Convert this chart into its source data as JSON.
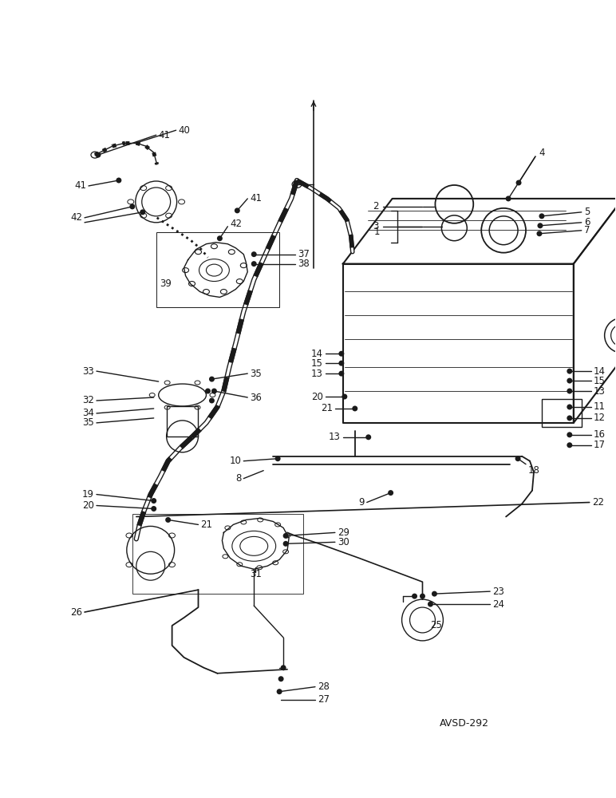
{
  "bg_color": "#ffffff",
  "line_color": "#1a1a1a",
  "watermark": "AVSD-292",
  "figsize": [
    7.72,
    10.0
  ],
  "dpi": 100
}
